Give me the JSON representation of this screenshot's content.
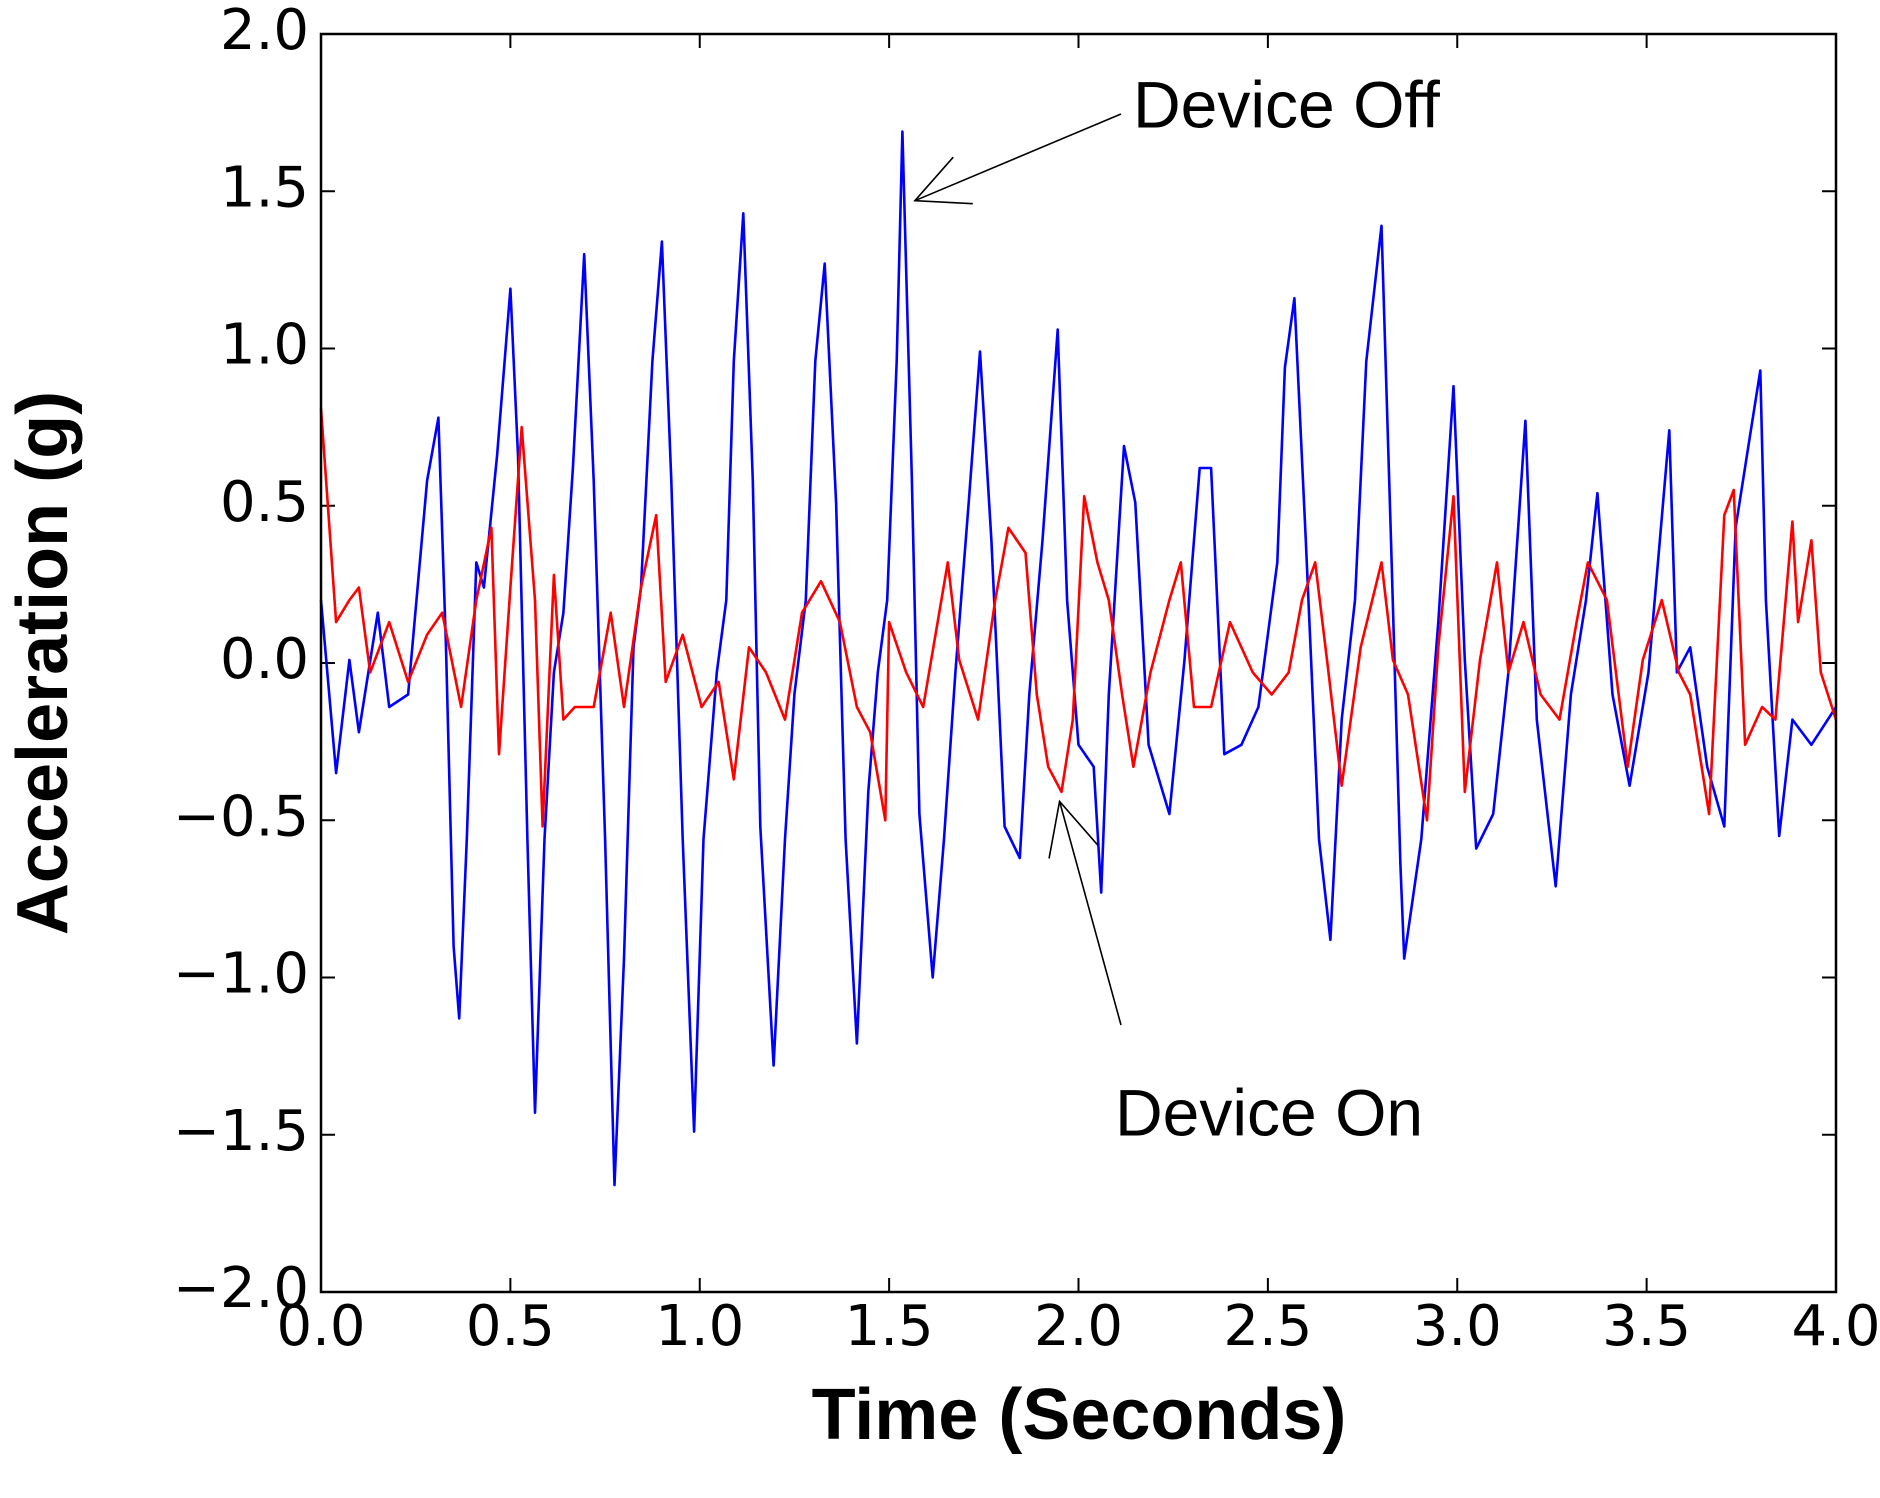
{
  "chart_data": {
    "type": "line",
    "xlabel": "Time (Seconds)",
    "ylabel": "Acceleration (g)",
    "xlim": [
      0,
      4.0
    ],
    "ylim": [
      -2.0,
      2.0
    ],
    "xticks": [
      {
        "value": 0,
        "label": "0.0"
      },
      {
        "value": 0.5,
        "label": "0.5"
      },
      {
        "value": 1.0,
        "label": "1.0"
      },
      {
        "value": 1.5,
        "label": "1.5"
      },
      {
        "value": 2.0,
        "label": "2.0"
      },
      {
        "value": 2.5,
        "label": "2.5"
      },
      {
        "value": 3.0,
        "label": "3.0"
      },
      {
        "value": 3.5,
        "label": "3.5"
      },
      {
        "value": 4.0,
        "label": "4.0"
      }
    ],
    "yticks": [
      {
        "value": -2.0,
        "label": "−2.0"
      },
      {
        "value": -1.5,
        "label": "−1.5"
      },
      {
        "value": -1.0,
        "label": "−1.0"
      },
      {
        "value": -0.5,
        "label": "−0.5"
      },
      {
        "value": 0,
        "label": "0.0"
      },
      {
        "value": 0.5,
        "label": "0.5"
      },
      {
        "value": 1.0,
        "label": "1.0"
      },
      {
        "value": 1.5,
        "label": "1.5"
      },
      {
        "value": 2.0,
        "label": "2.0"
      }
    ],
    "series": [
      {
        "color": "#0000ff",
        "x": [
          0,
          0.04,
          0.075,
          0.1,
          0.15,
          0.18,
          0.23,
          0.28,
          0.31,
          0.33,
          0.35,
          0.365,
          0.385,
          0.41,
          0.43,
          0.465,
          0.5,
          0.52,
          0.545,
          0.565,
          0.59,
          0.615,
          0.64,
          0.665,
          0.695,
          0.72,
          0.75,
          0.775,
          0.8,
          0.825,
          0.845,
          0.875,
          0.9,
          0.925,
          0.955,
          0.985,
          1.01,
          1.045,
          1.07,
          1.09,
          1.115,
          1.14,
          1.16,
          1.195,
          1.225,
          1.25,
          1.28,
          1.305,
          1.33,
          1.36,
          1.385,
          1.415,
          1.445,
          1.47,
          1.495,
          1.52,
          1.535,
          1.56,
          1.58,
          1.615,
          1.645,
          1.675,
          1.71,
          1.74,
          1.77,
          1.805,
          1.845,
          1.87,
          1.905,
          1.945,
          1.97,
          2.0,
          2.04,
          2.06,
          2.08,
          2.12,
          2.15,
          2.185,
          2.24,
          2.28,
          2.32,
          2.35,
          2.385,
          2.43,
          2.475,
          2.525,
          2.545,
          2.57,
          2.6,
          2.635,
          2.665,
          2.695,
          2.73,
          2.76,
          2.8,
          2.825,
          2.85,
          2.86,
          2.905,
          2.95,
          2.99,
          3.02,
          3.05,
          3.095,
          3.135,
          3.18,
          3.21,
          3.26,
          3.3,
          3.34,
          3.37,
          3.41,
          3.455,
          3.505,
          3.56,
          3.58,
          3.615,
          3.66,
          3.705,
          3.735,
          3.77,
          3.8,
          3.815,
          3.85,
          3.885,
          3.935,
          4.0
        ],
        "values": [
          0.2,
          -0.35,
          0.01,
          -0.22,
          0.16,
          -0.14,
          -0.1,
          0.58,
          0.78,
          0.05,
          -0.9,
          -1.13,
          -0.56,
          0.32,
          0.24,
          0.66,
          1.19,
          0.66,
          -0.56,
          -1.43,
          -0.56,
          -0.03,
          0.16,
          0.62,
          1.3,
          0.58,
          -0.56,
          -1.66,
          -0.94,
          0.05,
          0.24,
          0.96,
          1.34,
          0.58,
          -0.56,
          -1.49,
          -0.56,
          -0.03,
          0.2,
          0.96,
          1.43,
          0.58,
          -0.52,
          -1.28,
          -0.56,
          -0.1,
          0.2,
          0.96,
          1.27,
          0.51,
          -0.56,
          -1.21,
          -0.41,
          -0.03,
          0.2,
          0.96,
          1.69,
          0.58,
          -0.48,
          -1.0,
          -0.56,
          -0.03,
          0.51,
          0.99,
          0.39,
          -0.52,
          -0.62,
          -0.1,
          0.39,
          1.06,
          0.2,
          -0.26,
          -0.33,
          -0.73,
          -0.1,
          0.69,
          0.51,
          -0.26,
          -0.48,
          0.01,
          0.62,
          0.62,
          -0.29,
          -0.26,
          -0.14,
          0.32,
          0.94,
          1.16,
          0.39,
          -0.56,
          -0.88,
          -0.18,
          0.2,
          0.96,
          1.39,
          0.39,
          -0.64,
          -0.94,
          -0.56,
          0.13,
          0.88,
          0.01,
          -0.59,
          -0.48,
          -0.03,
          0.77,
          -0.18,
          -0.71,
          -0.1,
          0.2,
          0.54,
          -0.1,
          -0.39,
          -0.03,
          0.74,
          -0.03,
          0.05,
          -0.33,
          -0.52,
          0.43,
          0.7,
          0.93,
          0.2,
          -0.55,
          -0.18,
          -0.26,
          -0.14
        ]
      },
      {
        "color": "#ff0000",
        "x": [
          0,
          0.04,
          0.075,
          0.1,
          0.13,
          0.18,
          0.23,
          0.28,
          0.32,
          0.37,
          0.41,
          0.45,
          0.47,
          0.5,
          0.53,
          0.565,
          0.585,
          0.615,
          0.64,
          0.67,
          0.72,
          0.765,
          0.8,
          0.845,
          0.885,
          0.91,
          0.955,
          1.005,
          1.05,
          1.09,
          1.13,
          1.175,
          1.225,
          1.27,
          1.32,
          1.37,
          1.415,
          1.45,
          1.49,
          1.5,
          1.545,
          1.59,
          1.655,
          1.685,
          1.735,
          1.78,
          1.815,
          1.86,
          1.89,
          1.92,
          1.955,
          1.985,
          2.015,
          2.05,
          2.08,
          2.115,
          2.145,
          2.19,
          2.24,
          2.27,
          2.305,
          2.35,
          2.4,
          2.46,
          2.51,
          2.555,
          2.59,
          2.625,
          2.66,
          2.695,
          2.745,
          2.8,
          2.83,
          2.87,
          2.92,
          2.95,
          2.99,
          3.02,
          3.06,
          3.105,
          3.135,
          3.175,
          3.22,
          3.27,
          3.315,
          3.345,
          3.395,
          3.45,
          3.49,
          3.54,
          3.585,
          3.615,
          3.665,
          3.705,
          3.73,
          3.76,
          3.805,
          3.84,
          3.885,
          3.9,
          3.935,
          3.96,
          4.0
        ],
        "values": [
          0.81,
          0.13,
          0.2,
          0.24,
          -0.03,
          0.13,
          -0.06,
          0.09,
          0.16,
          -0.14,
          0.2,
          0.43,
          -0.29,
          0.24,
          0.75,
          0.2,
          -0.52,
          0.28,
          -0.18,
          -0.14,
          -0.14,
          0.16,
          -0.14,
          0.24,
          0.47,
          -0.06,
          0.09,
          -0.14,
          -0.06,
          -0.37,
          0.05,
          -0.03,
          -0.18,
          0.16,
          0.26,
          0.13,
          -0.14,
          -0.22,
          -0.5,
          0.13,
          -0.03,
          -0.14,
          0.32,
          0.01,
          -0.18,
          0.2,
          0.43,
          0.35,
          -0.1,
          -0.33,
          -0.41,
          -0.18,
          0.53,
          0.32,
          0.2,
          -0.1,
          -0.33,
          -0.03,
          0.2,
          0.32,
          -0.14,
          -0.14,
          0.13,
          -0.03,
          -0.1,
          -0.03,
          0.2,
          0.32,
          -0.03,
          -0.39,
          0.05,
          0.32,
          0.01,
          -0.1,
          -0.5,
          0.05,
          0.53,
          -0.41,
          0.01,
          0.32,
          -0.03,
          0.13,
          -0.1,
          -0.18,
          0.13,
          0.32,
          0.2,
          -0.33,
          0.01,
          0.2,
          -0.03,
          -0.1,
          -0.48,
          0.47,
          0.55,
          -0.26,
          -0.14,
          -0.18,
          0.45,
          0.13,
          0.39,
          -0.03,
          -0.18
        ]
      }
    ],
    "annotations": [
      {
        "text": "Device Off",
        "xy": [
          1.568,
          1.47
        ]
      },
      {
        "text": "Device On",
        "xy": [
          1.95,
          -0.44
        ]
      }
    ]
  }
}
